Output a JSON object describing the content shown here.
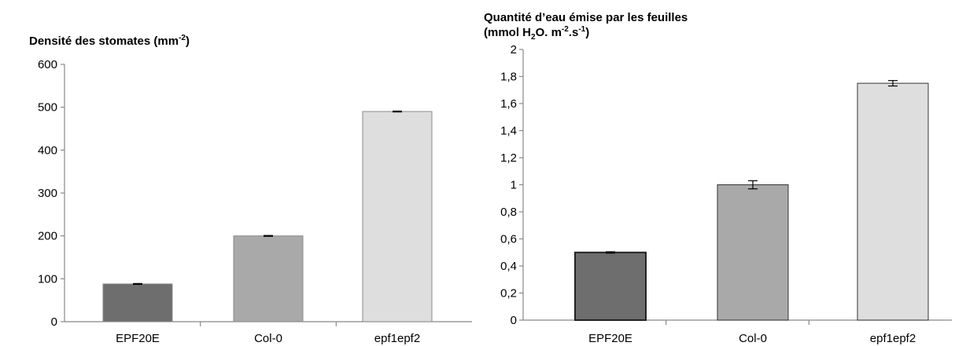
{
  "chart_data": [
    {
      "type": "bar",
      "title": "Densité des stomates (mm",
      "title_sup": "-2",
      "title_tail": ")",
      "categories": [
        "EPF20E",
        "Col-0",
        "epf1epf2"
      ],
      "values": [
        88,
        200,
        490
      ],
      "errors": [
        1,
        1,
        1
      ],
      "bar_colors": [
        "#6e6e6e",
        "#a9a9a9",
        "#dedede"
      ],
      "ylim": [
        0,
        600
      ],
      "yticks": [
        "0",
        "100",
        "200",
        "300",
        "400",
        "500",
        "600"
      ],
      "ytick_values": [
        0,
        100,
        200,
        300,
        400,
        500,
        600
      ],
      "grid": false
    },
    {
      "type": "bar",
      "title": "Quantité d’eau émise par les feuilles",
      "title2_a": "(mmol H",
      "title2_sub": "2",
      "title2_b": "O. m",
      "title2_sup1": "-2",
      "title2_c": ".s",
      "title2_sup2": "-1",
      "title2_d": ")",
      "categories": [
        "EPF20E",
        "Col-0",
        "epf1epf2"
      ],
      "values": [
        0.5,
        1.0,
        1.75
      ],
      "errors": [
        0.005,
        0.03,
        0.02
      ],
      "bar_colors": [
        "#6e6e6e",
        "#a9a9a9",
        "#dedede"
      ],
      "ylim": [
        0,
        2
      ],
      "yticks": [
        "0",
        "0,2",
        "0,4",
        "0,6",
        "0,8",
        "1",
        "1,2",
        "1,4",
        "1,6",
        "1,8",
        "2"
      ],
      "ytick_values": [
        0,
        0.2,
        0.4,
        0.6,
        0.8,
        1.0,
        1.2,
        1.4,
        1.6,
        1.8,
        2.0
      ],
      "grid": false
    }
  ]
}
